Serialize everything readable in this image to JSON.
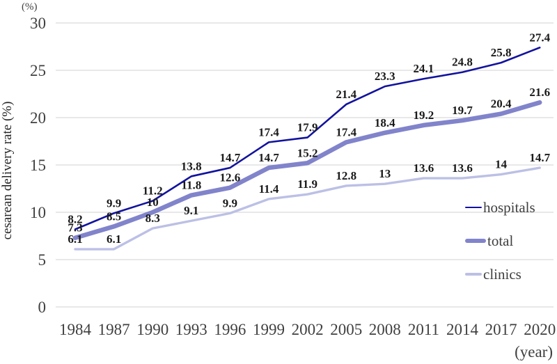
{
  "chart_data": {
    "type": "line",
    "title": "",
    "ylabel": "cesarean delivery rate (%)",
    "y_unit_label": "(%)",
    "x_unit_label": "(year)",
    "categories": [
      1984,
      1987,
      1990,
      1993,
      1996,
      1999,
      2002,
      2005,
      2008,
      2011,
      2014,
      2017,
      2020
    ],
    "ylim": [
      0,
      30
    ],
    "yticks": [
      0,
      5,
      10,
      15,
      20,
      25,
      30
    ],
    "grid": "horizontal",
    "gridline_color": "#d9d9d9",
    "axis_text_color": "#3f3f3f",
    "data_label_color": "#1a1a1a",
    "legend_position": "right-inside",
    "series": [
      {
        "name": "hospitals",
        "color": "#12129e",
        "values": [
          8.2,
          9.9,
          11.2,
          13.8,
          14.7,
          17.4,
          17.9,
          21.4,
          23.3,
          24.1,
          24.8,
          25.8,
          27.4
        ]
      },
      {
        "name": "total",
        "color": "#8184cb",
        "values": [
          7.3,
          8.5,
          10,
          11.8,
          12.6,
          14.7,
          15.2,
          17.4,
          18.4,
          19.2,
          19.7,
          20.4,
          21.6
        ]
      },
      {
        "name": "clinics",
        "color": "#bcc0e5",
        "values": [
          6.1,
          6.1,
          8.3,
          9.1,
          9.9,
          11.4,
          11.9,
          12.8,
          13,
          13.6,
          13.6,
          14,
          14.7
        ]
      }
    ]
  }
}
